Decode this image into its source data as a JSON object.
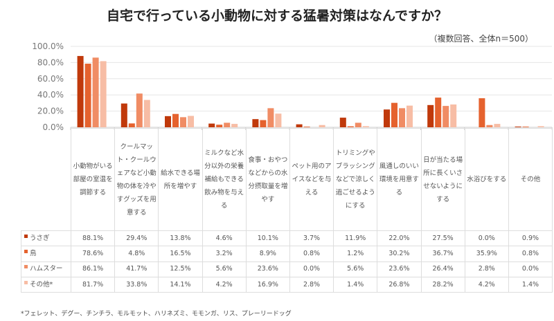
{
  "chart_data": {
    "type": "bar",
    "title": "自宅で行っている小動物に対する猛暑対策はなんですか？",
    "subtitle": "（複数回答、全体n＝500）",
    "ylim": [
      0,
      100
    ],
    "yticks": [
      "0.0%",
      "20.0%",
      "40.0%",
      "60.0%",
      "80.0%",
      "100.0%"
    ],
    "grid": true,
    "legend_placement": "table-left",
    "categories": [
      "小動物がいる部屋の室温を調節する",
      "クールマット・クールウェアなど小動物の体を冷やすグッズを用意する",
      "給水できる場所を増やす",
      "ミルクなど水分以外の栄養補給もできる飲み物を与える",
      "食事・おやつなどからの水分摂取量を増やす",
      "ペット用のアイスなどを与える",
      "トリミングやブラッシングなどで涼しく過ごせるようにする",
      "風通しのいい環境を用意する",
      "日が当たる場所に長くいさせないようにする",
      "水浴びをする",
      "その他"
    ],
    "series": [
      {
        "name": "うさぎ",
        "color": "#c0390b",
        "values": [
          88.1,
          29.4,
          13.8,
          4.6,
          10.1,
          3.7,
          11.9,
          22.0,
          27.5,
          0.0,
          0.9
        ],
        "labels": [
          "88.1%",
          "29.4%",
          "13.8%",
          "4.6%",
          "10.1%",
          "3.7%",
          "11.9%",
          "22.0%",
          "27.5%",
          "0.0%",
          "0.9%"
        ]
      },
      {
        "name": "鳥",
        "color": "#e5622e",
        "values": [
          78.6,
          4.8,
          16.5,
          3.2,
          8.9,
          0.8,
          1.2,
          30.2,
          36.7,
          35.9,
          0.8
        ],
        "labels": [
          "78.6%",
          "4.8%",
          "16.5%",
          "3.2%",
          "8.9%",
          "0.8%",
          "1.2%",
          "30.2%",
          "36.7%",
          "35.9%",
          "0.8%"
        ]
      },
      {
        "name": "ハムスター",
        "color": "#f08c64",
        "values": [
          86.1,
          41.7,
          12.5,
          5.6,
          23.6,
          0.0,
          5.6,
          23.6,
          26.4,
          2.8,
          0.0
        ],
        "labels": [
          "86.1%",
          "41.7%",
          "12.5%",
          "5.6%",
          "23.6%",
          "0.0%",
          "5.6%",
          "23.6%",
          "26.4%",
          "2.8%",
          "0.0%"
        ]
      },
      {
        "name": "その他*",
        "color": "#f7bda5",
        "values": [
          81.7,
          33.8,
          14.1,
          4.2,
          16.9,
          2.8,
          1.4,
          26.8,
          28.2,
          4.2,
          1.4
        ],
        "labels": [
          "81.7%",
          "33.8%",
          "14.1%",
          "4.2%",
          "16.9%",
          "2.8%",
          "1.4%",
          "26.8%",
          "28.2%",
          "4.2%",
          "1.4%"
        ]
      }
    ],
    "footnote": "*フェレット、デグー、チンチラ、モルモット、ハリネズミ、モモンガ、リス、プレーリードッグ"
  }
}
